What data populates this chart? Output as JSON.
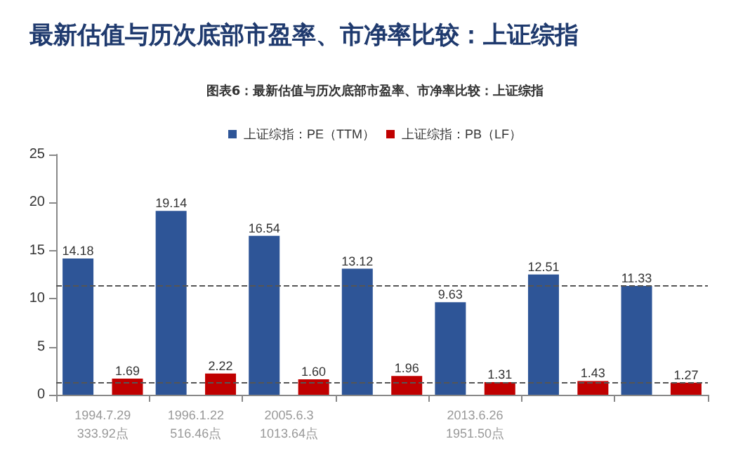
{
  "chart_data": {
    "type": "bar",
    "title": "最新估值与历次底部市盈率、市净率比较：上证综指",
    "subtitle": "图表6：最新估值与历次底部市盈率、市净率比较：上证综指",
    "categories": [
      "1994.7.29\n333.92点",
      "1996.1.22\n516.46点",
      "2005.6.3\n1013.64点",
      null,
      "2013.6.26\n1951.50点",
      null,
      null
    ],
    "series": [
      {
        "name": "上证综指：PE（TTM）",
        "color": "#2e5597",
        "values": [
          14.18,
          19.14,
          16.54,
          13.12,
          9.63,
          12.51,
          11.33
        ],
        "value_labels": [
          "14.18",
          "19.14",
          "16.54",
          "13.12",
          "9.63",
          "12.51",
          "11.33"
        ]
      },
      {
        "name": "上证综指：PB（LF）",
        "color": "#c00000",
        "values": [
          1.69,
          2.22,
          1.6,
          1.96,
          1.31,
          1.43,
          1.27
        ],
        "value_labels": [
          "1.69",
          "2.22",
          "1.60",
          "1.96",
          "1.31",
          "1.43",
          "1.27"
        ]
      }
    ],
    "ylim": [
      0,
      25
    ],
    "yticks": [
      0,
      5,
      10,
      15,
      20,
      25
    ],
    "grid": false,
    "legend": "top",
    "ref_lines": [
      {
        "axis": "y",
        "value": 11.33,
        "line_style": "dashed",
        "color": "#555555"
      },
      {
        "axis": "y",
        "value": 1.27,
        "line_style": "dashed",
        "color": "#555555"
      }
    ]
  }
}
